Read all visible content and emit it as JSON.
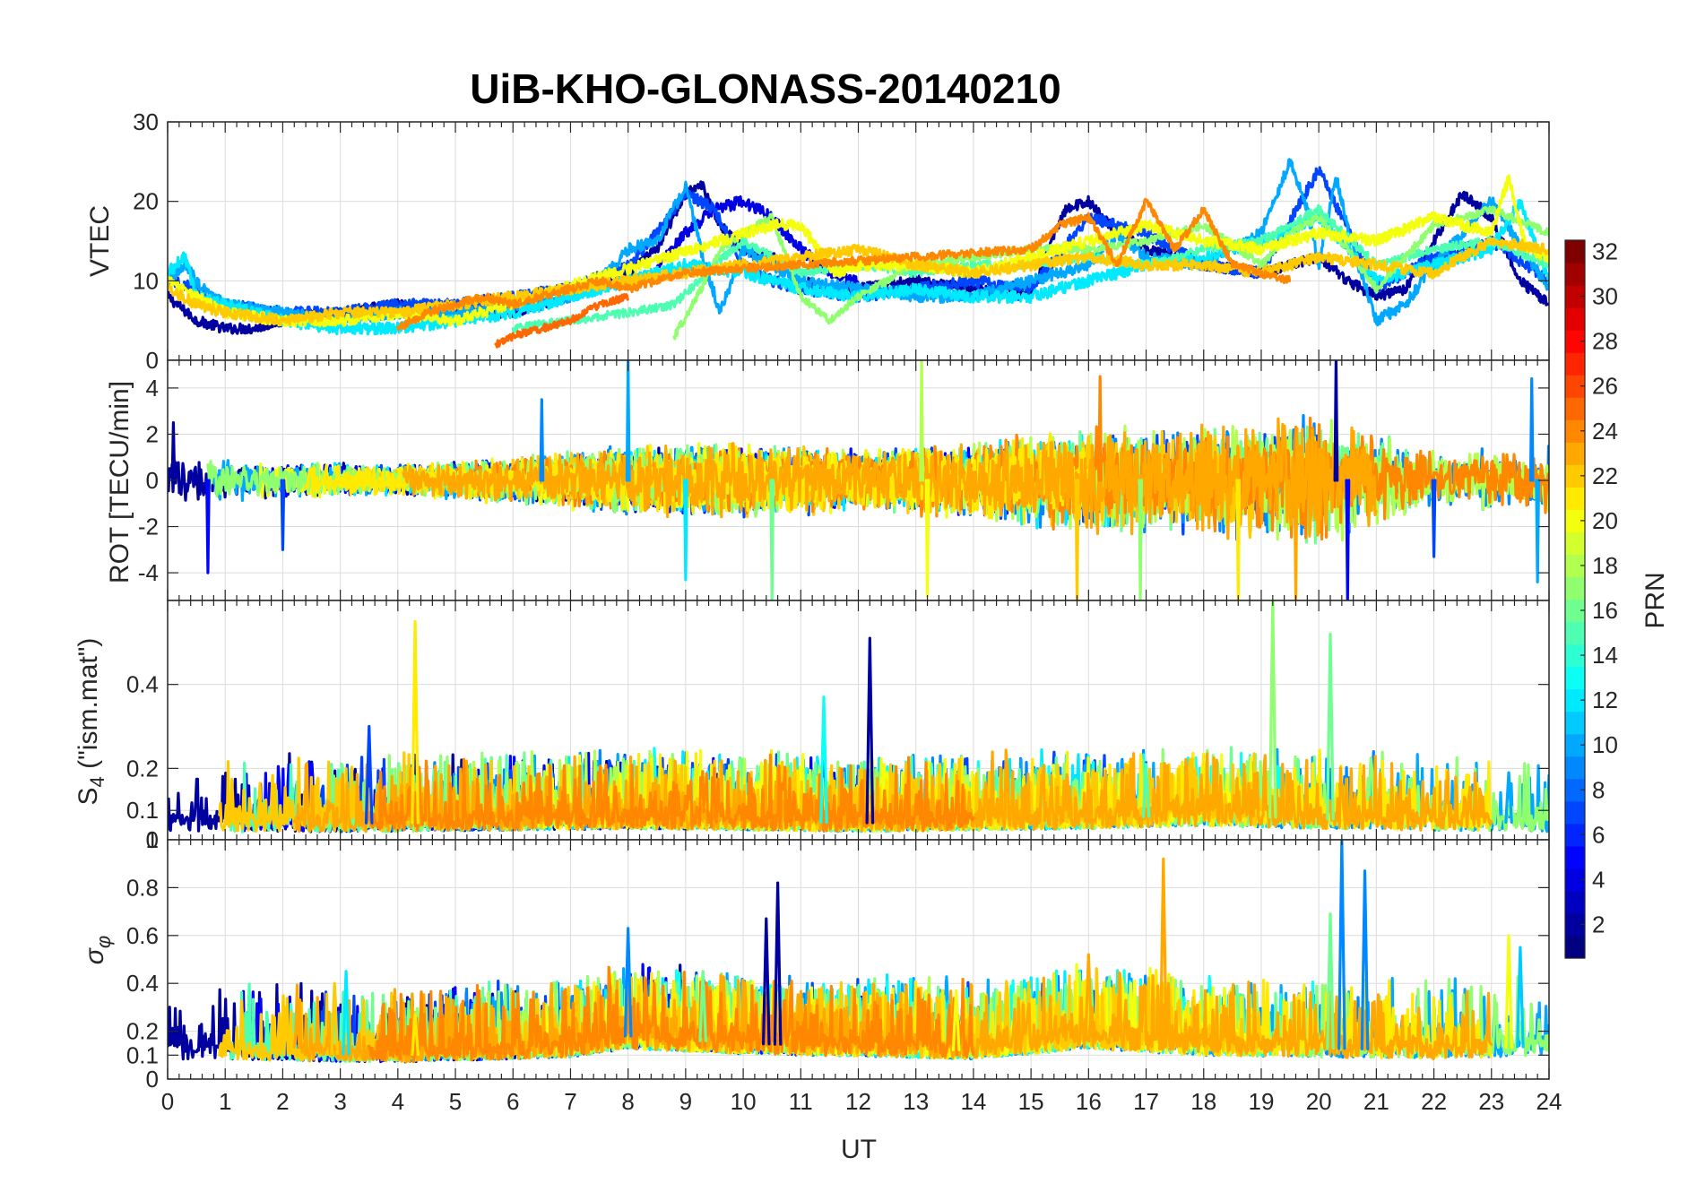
{
  "figure": {
    "title": "UiB-KHO-GLONASS-20140210",
    "xlabel": "UT"
  },
  "colorbar": {
    "label": "PRN",
    "colormap": "jet",
    "range": [
      1,
      32
    ],
    "ticks": [
      2,
      4,
      6,
      8,
      10,
      12,
      14,
      16,
      18,
      20,
      22,
      24,
      26,
      28,
      30,
      32
    ]
  },
  "chart_data": [
    {
      "type": "line",
      "panel": "vtec",
      "ylabel": "VTEC",
      "xlim": [
        0,
        24
      ],
      "ylim": [
        0,
        30
      ],
      "xticks": [
        0,
        1,
        2,
        3,
        4,
        5,
        6,
        7,
        8,
        9,
        10,
        11,
        12,
        13,
        14,
        15,
        16,
        17,
        18,
        19,
        20,
        21,
        22,
        23,
        24
      ],
      "yticks": [
        0,
        10,
        20,
        30
      ],
      "grid": true,
      "series": [
        {
          "prn": 2,
          "x": [
            0,
            0.5,
            1,
            1.5,
            2,
            3,
            4,
            5,
            6,
            7,
            8,
            8.5,
            9,
            9.3,
            9.6,
            10,
            10.5,
            11,
            11.5,
            12,
            13,
            14,
            15,
            15.3,
            15.6,
            16,
            16.5,
            17,
            18,
            19,
            20,
            20.5,
            21,
            21.5,
            22,
            22.5,
            23,
            23.5,
            24
          ],
          "y": [
            8,
            5,
            4,
            4,
            5,
            6,
            7,
            6,
            6,
            8,
            11,
            14,
            21,
            22,
            17,
            14,
            13,
            10,
            9,
            9,
            10,
            9,
            8,
            14,
            19,
            20,
            16,
            14,
            12,
            11,
            13,
            10,
            8,
            9,
            15,
            21,
            18,
            10,
            7
          ]
        },
        {
          "prn": 4,
          "x": [
            8.5,
            9,
            9.5,
            10,
            10.5,
            11,
            11.5,
            12
          ],
          "y": [
            12,
            16,
            19,
            20,
            18,
            14,
            11,
            10
          ]
        },
        {
          "prn": 7,
          "x": [
            0,
            0.5,
            1,
            2,
            3,
            4,
            5,
            6,
            7,
            8,
            8.5,
            9,
            9.5,
            10,
            10.5,
            11,
            12,
            13,
            14,
            15,
            16,
            17,
            18,
            19,
            20,
            21,
            22,
            23,
            24
          ],
          "y": [
            10,
            9,
            7,
            6,
            6,
            7,
            7,
            8,
            9,
            12,
            16,
            21,
            19,
            12,
            10,
            9,
            8,
            9,
            10,
            9,
            18,
            16,
            12,
            11,
            24,
            9,
            13,
            15,
            10
          ]
        },
        {
          "prn": 10,
          "x": [
            0,
            0.3,
            0.6,
            1,
            2,
            3,
            4,
            5,
            6,
            7,
            7.5,
            8,
            8.5,
            9,
            9.3,
            9.6,
            10,
            11,
            12,
            13,
            14,
            15,
            16,
            16.5,
            17,
            18,
            19,
            19.5,
            19.8,
            20,
            20.3,
            20.6,
            21,
            21.5,
            22,
            23,
            24
          ],
          "y": [
            10,
            12,
            9,
            7,
            6,
            5,
            6,
            6,
            7,
            8,
            10,
            14,
            15,
            22,
            13,
            6,
            14,
            10,
            9,
            8,
            8,
            10,
            12,
            16,
            13,
            12,
            16,
            25,
            19,
            12,
            23,
            14,
            5,
            7,
            12,
            20,
            9
          ]
        },
        {
          "prn": 12,
          "x": [
            0,
            0.3,
            0.5,
            1,
            2,
            3,
            4,
            5,
            6,
            7,
            8,
            9,
            10,
            11,
            12,
            13,
            14,
            15,
            16,
            17,
            18,
            19,
            20,
            21,
            22,
            23,
            23.5,
            24
          ],
          "y": [
            11,
            13,
            8,
            7,
            5,
            4,
            4,
            5,
            6,
            8,
            10,
            12,
            11,
            9,
            8,
            9,
            8,
            8,
            10,
            12,
            13,
            15,
            18,
            10,
            12,
            14,
            20,
            10
          ]
        },
        {
          "prn": 15,
          "x": [
            6,
            7,
            8,
            8.8,
            9.5,
            10,
            10.5,
            11,
            12,
            13,
            14,
            15,
            16,
            17,
            18,
            19,
            20,
            21,
            22,
            23,
            24
          ],
          "y": [
            4,
            5,
            6,
            7,
            12,
            15,
            13,
            11,
            12,
            11,
            12,
            12,
            13,
            12,
            14,
            15,
            19,
            12,
            14,
            15,
            12
          ]
        },
        {
          "prn": 17,
          "x": [
            8.8,
            9.2,
            9.6,
            10,
            10.5,
            11,
            11.5,
            12,
            13,
            14,
            15,
            16,
            17,
            18,
            19,
            19.5,
            20,
            20.5,
            21,
            22,
            23,
            24
          ],
          "y": [
            3,
            8,
            14,
            16,
            18,
            8,
            5,
            8,
            12,
            13,
            14,
            14,
            15,
            17,
            12,
            16,
            18,
            14,
            9,
            17,
            19,
            16
          ]
        },
        {
          "prn": 20,
          "x": [
            0,
            0.5,
            1,
            2,
            3,
            4,
            5,
            10.5,
            11,
            11.3,
            11.6,
            12,
            13,
            14,
            15,
            16,
            17,
            18,
            19,
            20,
            21,
            22,
            23,
            23.3,
            23.6,
            24
          ],
          "y": [
            10,
            8,
            6,
            5,
            5,
            6,
            5,
            17,
            17,
            14,
            11,
            12,
            12,
            11,
            13,
            15,
            17,
            15,
            14,
            16,
            15,
            18,
            16,
            23,
            14,
            13
          ]
        },
        {
          "prn": 22,
          "x": [
            0,
            0.5,
            1,
            2,
            3,
            4,
            12,
            13,
            14,
            15,
            16,
            17,
            18,
            19,
            20,
            21,
            22,
            23,
            24
          ],
          "y": [
            9,
            7,
            6,
            5,
            6,
            6,
            14,
            12,
            11,
            12,
            13,
            12,
            12,
            11,
            13,
            12,
            11,
            15,
            14
          ]
        },
        {
          "prn": 24,
          "x": [
            4,
            4.5,
            5,
            5.5,
            6,
            6.5,
            7,
            7.5,
            8,
            8.5,
            9,
            15,
            15.5,
            16,
            16.5,
            17,
            17.5,
            18,
            18.5,
            19,
            19.5
          ],
          "y": [
            4,
            6,
            7,
            8,
            7,
            8,
            9,
            10,
            9,
            10,
            11,
            14,
            17,
            18,
            12,
            20,
            14,
            19,
            12,
            11,
            10
          ]
        },
        {
          "prn": 25,
          "x": [
            5.7,
            6,
            6.5,
            7,
            7.5,
            8
          ],
          "y": [
            2,
            3,
            4,
            5,
            7,
            8
          ]
        }
      ]
    },
    {
      "type": "line",
      "panel": "rot",
      "ylabel": "ROT [TECU/min]",
      "xlim": [
        0,
        24
      ],
      "ylim": [
        -5.2,
        5.2
      ],
      "xticks": [
        0,
        1,
        2,
        3,
        4,
        5,
        6,
        7,
        8,
        9,
        10,
        11,
        12,
        13,
        14,
        15,
        16,
        17,
        18,
        19,
        20,
        21,
        22,
        23,
        24
      ],
      "yticks": [
        -4,
        -2,
        0,
        2,
        4
      ],
      "grid": true,
      "envelope": [
        {
          "x": 0,
          "amp": 1.5
        },
        {
          "x": 2,
          "amp": 1.2
        },
        {
          "x": 4,
          "amp": 1.0
        },
        {
          "x": 6,
          "amp": 1.5
        },
        {
          "x": 8,
          "amp": 2.2
        },
        {
          "x": 10,
          "amp": 2.5
        },
        {
          "x": 12,
          "amp": 2.0
        },
        {
          "x": 14,
          "amp": 2.5
        },
        {
          "x": 16,
          "amp": 3.5
        },
        {
          "x": 18,
          "amp": 3.5
        },
        {
          "x": 20,
          "amp": 4.5
        },
        {
          "x": 22,
          "amp": 2.0
        },
        {
          "x": 24,
          "amp": 2.2
        }
      ],
      "spikes": [
        {
          "x": 0.1,
          "y": 2.5
        },
        {
          "x": 0.7,
          "y": -4.0
        },
        {
          "x": 2.0,
          "y": -3.0
        },
        {
          "x": 6.5,
          "y": 3.5
        },
        {
          "x": 8.0,
          "y": 5.2
        },
        {
          "x": 9.0,
          "y": -4.3
        },
        {
          "x": 10.5,
          "y": -5.2
        },
        {
          "x": 13.1,
          "y": 5.2
        },
        {
          "x": 13.2,
          "y": -5.0
        },
        {
          "x": 15.8,
          "y": -5.2
        },
        {
          "x": 16.2,
          "y": 4.5
        },
        {
          "x": 16.9,
          "y": -5.2
        },
        {
          "x": 18.6,
          "y": -5.2
        },
        {
          "x": 19.6,
          "y": -5.2
        },
        {
          "x": 20.3,
          "y": 5.2
        },
        {
          "x": 20.5,
          "y": -5.2
        },
        {
          "x": 22.0,
          "y": -3.3
        },
        {
          "x": 23.7,
          "y": 4.4
        },
        {
          "x": 23.8,
          "y": -4.4
        }
      ]
    },
    {
      "type": "line",
      "panel": "s4",
      "ylabel": "S4 (\"ism.mat\")",
      "ylabel_main": "S",
      "ylabel_sub": "4",
      "ylabel_rest": " (\"ism.mat\")",
      "xlim": [
        0,
        24
      ],
      "ylim": [
        0.03,
        0.6
      ],
      "xticks": [
        0,
        1,
        2,
        3,
        4,
        5,
        6,
        7,
        8,
        9,
        10,
        11,
        12,
        13,
        14,
        15,
        16,
        17,
        18,
        19,
        20,
        21,
        22,
        23,
        24
      ],
      "yticks": [
        0.1,
        0.2,
        0.4
      ],
      "grid": true,
      "baseline": [
        {
          "x": 0,
          "y": 0.07
        },
        {
          "x": 4,
          "y": 0.07
        },
        {
          "x": 8,
          "y": 0.08
        },
        {
          "x": 12,
          "y": 0.07
        },
        {
          "x": 16,
          "y": 0.08
        },
        {
          "x": 18,
          "y": 0.09
        },
        {
          "x": 20,
          "y": 0.08
        },
        {
          "x": 24,
          "y": 0.07
        }
      ],
      "spikes": [
        {
          "x": 3.5,
          "y": 0.3,
          "prn": 7
        },
        {
          "x": 4.3,
          "y": 0.55,
          "prn": 21
        },
        {
          "x": 11.4,
          "y": 0.37,
          "prn": 13
        },
        {
          "x": 12.2,
          "y": 0.51,
          "prn": 2
        },
        {
          "x": 19.2,
          "y": 0.6,
          "prn": 17
        },
        {
          "x": 20.2,
          "y": 0.52,
          "prn": 16
        },
        {
          "x": 17.0,
          "y": 0.21,
          "prn": 15
        },
        {
          "x": 23.3,
          "y": 0.19,
          "prn": 10
        }
      ]
    },
    {
      "type": "line",
      "panel": "sigma_phi",
      "ylabel": "σφ",
      "ylabel_main": "σ",
      "ylabel_sub": "φ",
      "xlim": [
        0,
        24
      ],
      "ylim": [
        0,
        1
      ],
      "xticks": [
        0,
        1,
        2,
        3,
        4,
        5,
        6,
        7,
        8,
        9,
        10,
        11,
        12,
        13,
        14,
        15,
        16,
        17,
        18,
        19,
        20,
        21,
        22,
        23,
        24
      ],
      "xticklabels": [
        "0",
        "1",
        "2",
        "3",
        "4",
        "5",
        "6",
        "7",
        "8",
        "9",
        "10",
        "11",
        "12",
        "13",
        "14",
        "15",
        "16",
        "17",
        "18",
        "19",
        "20",
        "21",
        "22",
        "23",
        "24"
      ],
      "yticks": [
        0,
        0.1,
        0.2,
        0.4,
        0.6,
        0.8
      ],
      "top_axis_labels": [
        "0",
        "1"
      ],
      "grid": true,
      "baseline": [
        {
          "x": 0,
          "y": 0.12
        },
        {
          "x": 4,
          "y": 0.1
        },
        {
          "x": 7,
          "y": 0.13
        },
        {
          "x": 8,
          "y": 0.18
        },
        {
          "x": 10,
          "y": 0.15
        },
        {
          "x": 14,
          "y": 0.12
        },
        {
          "x": 16,
          "y": 0.18
        },
        {
          "x": 18,
          "y": 0.14
        },
        {
          "x": 20,
          "y": 0.13
        },
        {
          "x": 22,
          "y": 0.12
        },
        {
          "x": 24,
          "y": 0.14
        }
      ],
      "spikes": [
        {
          "x": 2.9,
          "y": 0.4,
          "prn": 22
        },
        {
          "x": 3.1,
          "y": 0.45,
          "prn": 12
        },
        {
          "x": 4.3,
          "y": 0.27,
          "prn": 21
        },
        {
          "x": 8.0,
          "y": 0.63,
          "prn": 9
        },
        {
          "x": 10.4,
          "y": 0.67,
          "prn": 2
        },
        {
          "x": 10.6,
          "y": 0.82,
          "prn": 2
        },
        {
          "x": 17.3,
          "y": 0.92,
          "prn": 23
        },
        {
          "x": 20.2,
          "y": 0.69,
          "prn": 16
        },
        {
          "x": 20.4,
          "y": 1.0,
          "prn": 9
        },
        {
          "x": 20.8,
          "y": 0.87,
          "prn": 9
        },
        {
          "x": 23.3,
          "y": 0.6,
          "prn": 20
        },
        {
          "x": 23.5,
          "y": 0.55,
          "prn": 11
        },
        {
          "x": 9.3,
          "y": 0.45,
          "prn": 16
        },
        {
          "x": 16.0,
          "y": 0.52,
          "prn": 23
        },
        {
          "x": 13.7,
          "y": 0.37,
          "prn": 20
        }
      ]
    }
  ]
}
